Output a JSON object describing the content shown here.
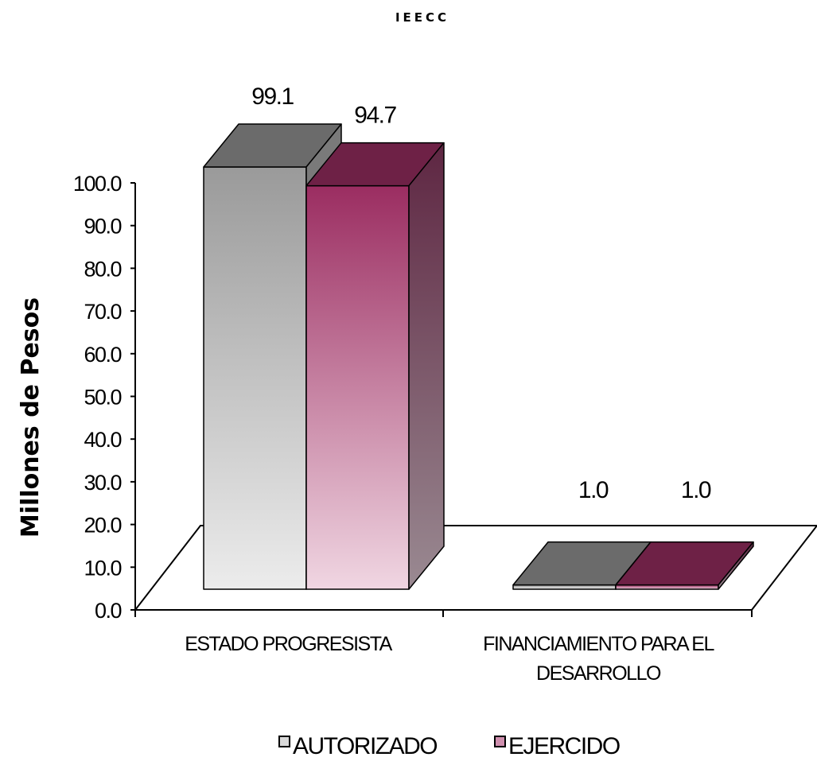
{
  "chart_data": {
    "type": "bar",
    "title": "IEECC",
    "ylabel": "Millones de Pesos",
    "xlabel": "",
    "ylim": [
      0,
      100
    ],
    "yticks": [
      "0.0",
      "10.0",
      "20.0",
      "30.0",
      "40.0",
      "50.0",
      "60.0",
      "70.0",
      "80.0",
      "90.0",
      "100.0"
    ],
    "categories": [
      [
        "ESTADO PROGRESISTA"
      ],
      [
        "FINANCIAMIENTO PARA EL",
        "DESARROLLO"
      ]
    ],
    "series": [
      {
        "name": "AUTORIZADO",
        "values": [
          99.1,
          1.0
        ],
        "labels": [
          "99.1",
          "1.0"
        ],
        "color": "#9a9a9a"
      },
      {
        "name": "EJERCIDO",
        "values": [
          94.7,
          1.0
        ],
        "labels": [
          "94.7",
          "1.0"
        ],
        "color": "#9b2d61"
      }
    ],
    "legend_position": "bottom",
    "grid": false,
    "three_d": true
  }
}
